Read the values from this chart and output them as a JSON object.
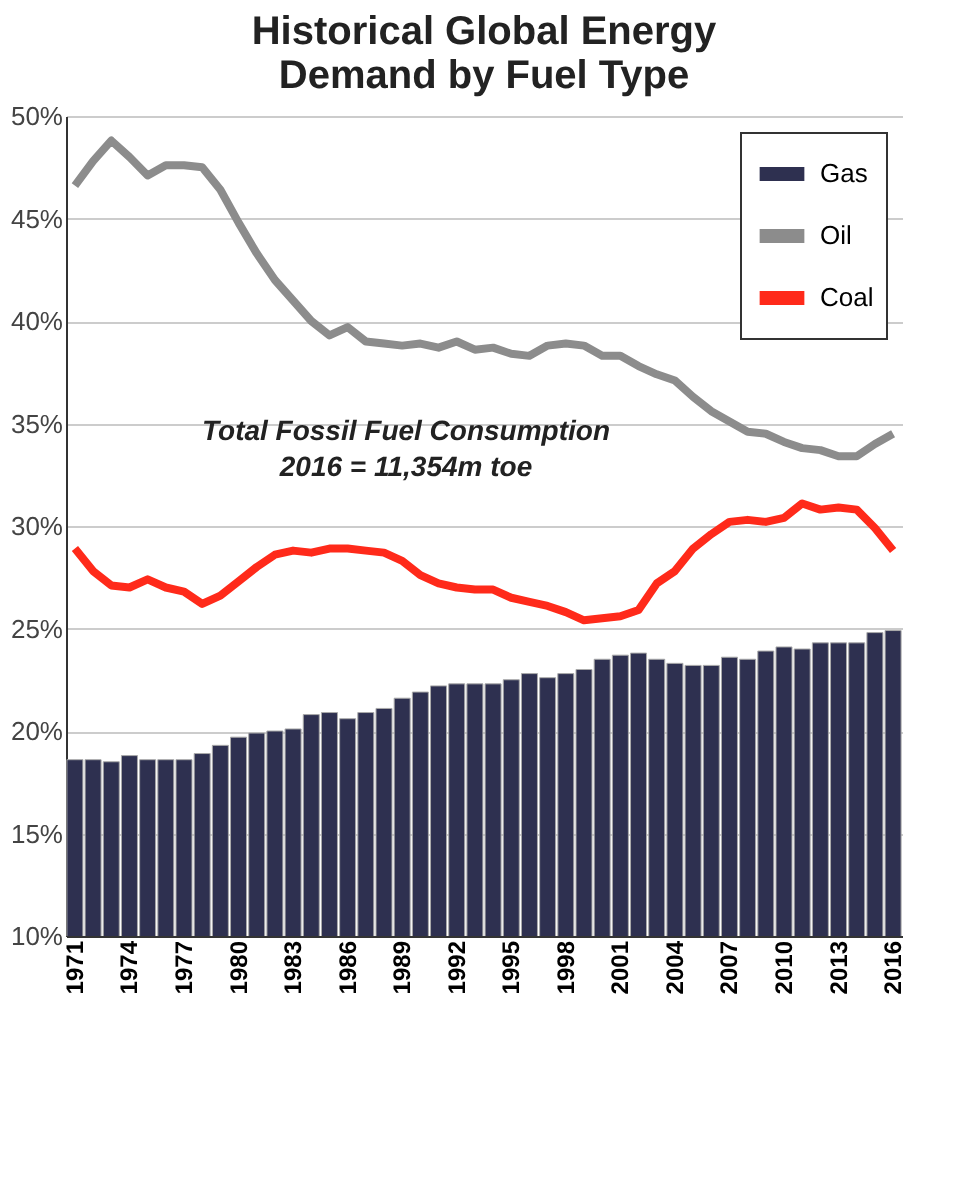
{
  "chart_data": {
    "type": "bar",
    "title": "Historical Global Energy Demand by Fuel Type",
    "categories": [
      "1971",
      null,
      null,
      "1974",
      null,
      null,
      "1977",
      null,
      null,
      "1980",
      null,
      null,
      "1983",
      null,
      null,
      "1986",
      null,
      null,
      "1989",
      null,
      null,
      "1992",
      null,
      null,
      "1995",
      null,
      null,
      "1998",
      null,
      null,
      "2001",
      null,
      null,
      "2004",
      null,
      null,
      "2007",
      null,
      null,
      "2010",
      null,
      null,
      "2013",
      null,
      null,
      "2016"
    ],
    "series": [
      {
        "name": "Gas",
        "color": "#2e3050",
        "values": [
          18.6,
          18.6,
          18.5,
          18.8,
          18.6,
          18.6,
          18.6,
          18.9,
          19.3,
          19.7,
          19.9,
          20.0,
          20.1,
          20.8,
          20.9,
          20.6,
          20.9,
          21.1,
          21.6,
          21.9,
          22.2,
          22.3,
          22.3,
          22.3,
          22.5,
          22.8,
          22.6,
          22.8,
          23.0,
          23.5,
          23.7,
          23.8,
          23.5,
          23.3,
          23.2,
          23.2,
          23.6,
          23.5,
          23.9,
          24.1,
          24.0,
          24.3,
          24.3,
          24.3,
          24.8,
          24.9
        ]
      },
      {
        "name": "Oil",
        "type": "line",
        "color": "#8c8c8c",
        "values": [
          46.6,
          47.8,
          48.8,
          48.0,
          47.1,
          47.6,
          47.6,
          47.5,
          46.4,
          44.8,
          43.3,
          42.0,
          41.0,
          40.0,
          39.3,
          39.7,
          39.0,
          38.9,
          38.8,
          38.9,
          38.7,
          39.0,
          38.6,
          38.7,
          38.4,
          38.3,
          38.8,
          38.9,
          38.8,
          38.3,
          38.3,
          37.8,
          37.4,
          37.1,
          36.3,
          35.6,
          35.1,
          34.6,
          34.5,
          34.1,
          33.8,
          33.7,
          33.4,
          33.4,
          34.0,
          34.5
        ]
      },
      {
        "name": "Coal",
        "type": "line",
        "color": "#ff2a1a",
        "values": [
          28.9,
          27.8,
          27.1,
          27.0,
          27.4,
          27.0,
          26.8,
          26.2,
          26.6,
          27.3,
          28.0,
          28.6,
          28.8,
          28.7,
          28.9,
          28.9,
          28.8,
          28.7,
          28.3,
          27.6,
          27.2,
          27.0,
          26.9,
          26.9,
          26.5,
          26.3,
          26.1,
          25.8,
          25.4,
          25.5,
          25.6,
          25.9,
          27.2,
          27.8,
          28.9,
          29.6,
          30.2,
          30.3,
          30.2,
          30.4,
          31.1,
          30.8,
          30.9,
          30.8,
          29.9,
          28.8
        ]
      }
    ],
    "ylim": [
      10,
      50
    ],
    "yticks": [
      {
        "value": 10,
        "label": "10%"
      },
      {
        "value": 15,
        "label": "15%"
      },
      {
        "value": 20,
        "label": "20%"
      },
      {
        "value": 25,
        "label": "25%"
      },
      {
        "value": 30,
        "label": "30%"
      },
      {
        "value": 35,
        "label": "35%"
      },
      {
        "value": 40,
        "label": "40%"
      },
      {
        "value": 45,
        "label": "45%"
      },
      {
        "value": 50,
        "label": "50%"
      }
    ],
    "grid": "y",
    "legend": "top right",
    "marker": "none",
    "line_style": "solid",
    "annotations": [
      "Total Fossil Fuel Consumption",
      "2016 = 11,354m toe"
    ]
  }
}
